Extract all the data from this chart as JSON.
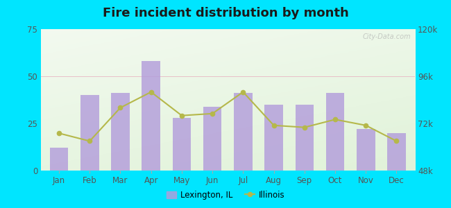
{
  "title": "Fire incident distribution by month",
  "months": [
    "Jan",
    "Feb",
    "Mar",
    "Apr",
    "May",
    "Jun",
    "Jul",
    "Aug",
    "Sep",
    "Oct",
    "Nov",
    "Dec"
  ],
  "lexington_values": [
    12,
    40,
    41,
    58,
    28,
    34,
    41,
    35,
    35,
    41,
    22,
    20
  ],
  "illinois_values": [
    67000,
    63000,
    80000,
    88000,
    76000,
    77000,
    88000,
    71000,
    70000,
    74000,
    71000,
    63000
  ],
  "bar_color": "#b39ddb",
  "bar_alpha": 0.82,
  "line_color": "#b5b84a",
  "background_outer": "#00e5ff",
  "ylim_left": [
    0,
    75
  ],
  "ylim_right": [
    48000,
    120000
  ],
  "yticks_left": [
    0,
    25,
    50,
    75
  ],
  "yticks_right": [
    48000,
    72000,
    96000,
    120000
  ],
  "ytick_labels_right": [
    "48k",
    "72k",
    "96k",
    "120k"
  ],
  "watermark": "City-Data.com",
  "legend_label_bar": "Lexington, IL",
  "legend_label_line": "Illinois"
}
